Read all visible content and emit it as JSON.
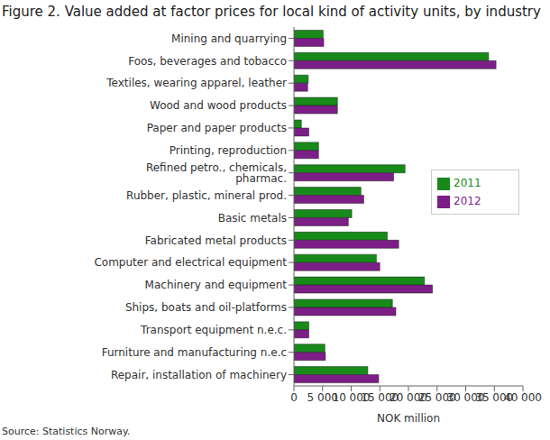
{
  "chart_data": {
    "type": "bar",
    "orientation": "horizontal",
    "title": "Figure 2. Value added at factor prices for local kind of activity units, by industry",
    "source": "Source: Statistics Norway.",
    "x_label": "NOK million",
    "categories": [
      "Mining and quarrying",
      "Foos, beverages and tobacco",
      "Textiles, wearing apparel, leather",
      "Wood and wood products",
      "Paper and paper products",
      "Printing, reproduction",
      "Refined petro., chemicals, pharmac.",
      "Rubber, plastic, mineral prod.",
      "Basic metals",
      "Fabricated metal products",
      "Computer and electrical equipment",
      "Machinery and equipment",
      "Ships, boats and oil-platforms",
      "Transport equipment n.e.c.",
      "Furniture and manufacturing n.e.c",
      "Repair, installation of machinery"
    ],
    "series": [
      {
        "name": "2011",
        "color": "#178a1a",
        "values": [
          5100,
          34000,
          2500,
          7600,
          1300,
          4300,
          19400,
          11700,
          10100,
          16300,
          14400,
          22800,
          17200,
          2600,
          5400,
          12900
        ]
      },
      {
        "name": "2012",
        "color": "#7b1f86",
        "values": [
          5200,
          35300,
          2400,
          7600,
          2600,
          4300,
          17400,
          12200,
          9500,
          18300,
          15000,
          24200,
          17800,
          2600,
          5500,
          14800
        ]
      }
    ],
    "xlim": [
      0,
      40000
    ],
    "xticks": [
      0,
      {
        "value": 5000,
        "label": "5 000"
      },
      {
        "value": 10000,
        "label": "10 000"
      },
      {
        "value": 15000,
        "label": "15 000"
      },
      {
        "value": 20000,
        "label": "20 000"
      },
      {
        "value": 25000,
        "label": "25 000"
      },
      {
        "value": 30000,
        "label": "30 000"
      },
      {
        "value": 35000,
        "label": "35 000"
      },
      {
        "value": 40000,
        "label": "40 000"
      }
    ],
    "legend": "right",
    "grid": false
  }
}
